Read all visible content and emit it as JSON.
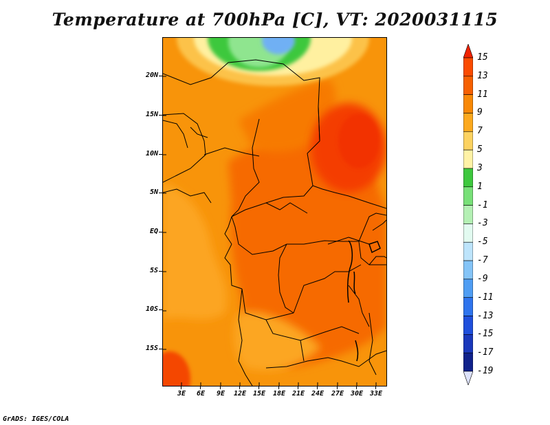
{
  "title": "Temperature at 700hPa [C], VT: 2020031115",
  "credit": "GrADS: IGES/COLA",
  "map": {
    "variable": "Temperature",
    "level": "700hPa",
    "units": "C",
    "valid_time": "2020031115",
    "lat_labels": [
      "20N",
      "15N",
      "10N",
      "5N",
      "EQ",
      "5S",
      "10S",
      "15S"
    ],
    "lon_labels": [
      "3E",
      "6E",
      "9E",
      "12E",
      "15E",
      "18E",
      "21E",
      "24E",
      "27E",
      "30E",
      "33E"
    ]
  },
  "colorbar": {
    "labels": [
      "15",
      "13",
      "11",
      "9",
      "7",
      "5",
      "3",
      "1",
      "-1",
      "-3",
      "-5",
      "-7",
      "-9",
      "-11",
      "-13",
      "-15",
      "-17",
      "-19"
    ],
    "colors": [
      "#f02200",
      "#fa4b00",
      "#f66000",
      "#f88806",
      "#fca91e",
      "#fcd260",
      "#fff2a6",
      "#3ec83e",
      "#78e078",
      "#b4f0b4",
      "#e2faf0",
      "#bde4fb",
      "#84c4f7",
      "#4f9df3",
      "#2f74ed",
      "#1f4fdc",
      "#1a38bb",
      "#10228b",
      "#06106a"
    ],
    "under_color": "#dde2fa"
  }
}
